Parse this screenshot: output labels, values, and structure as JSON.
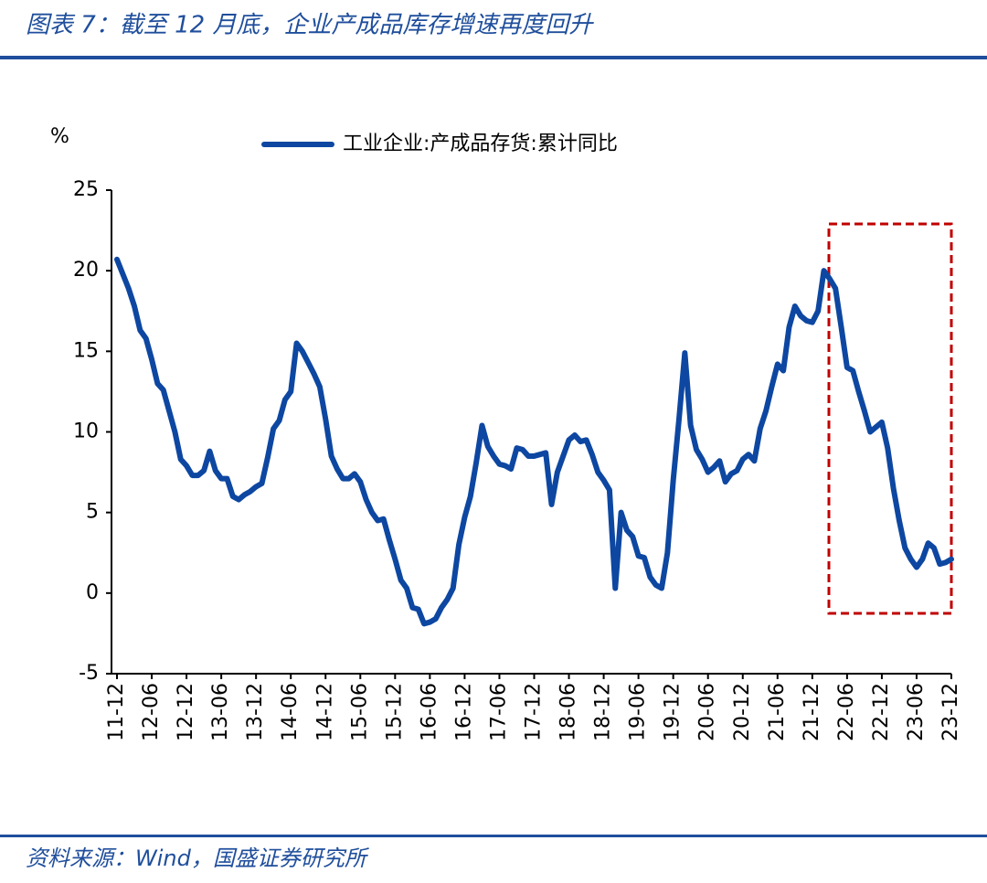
{
  "chart_data": {
    "type": "line",
    "title": "图表 7：截至 12 月底，企业产成品库存增速再度回升",
    "source": "资料来源：Wind，国盛证券研究所",
    "ylabel": "%",
    "categories": [
      "11-12",
      null,
      null,
      null,
      null,
      null,
      "12-06",
      null,
      null,
      null,
      null,
      null,
      "12-12",
      null,
      null,
      null,
      null,
      null,
      "13-06",
      null,
      null,
      null,
      null,
      null,
      "13-12",
      null,
      null,
      null,
      null,
      null,
      "14-06",
      null,
      null,
      null,
      null,
      null,
      "14-12",
      null,
      null,
      null,
      null,
      null,
      "15-06",
      null,
      null,
      null,
      null,
      null,
      "15-12",
      null,
      null,
      null,
      null,
      null,
      "16-06",
      null,
      null,
      null,
      null,
      null,
      "16-12",
      null,
      null,
      null,
      null,
      null,
      "17-06",
      null,
      null,
      null,
      null,
      null,
      "17-12",
      null,
      null,
      null,
      null,
      null,
      "18-06",
      null,
      null,
      null,
      null,
      null,
      "18-12",
      null,
      null,
      null,
      null,
      null,
      "19-06",
      null,
      null,
      null,
      null,
      null,
      "19-12",
      null,
      null,
      null,
      null,
      null,
      "20-06",
      null,
      null,
      null,
      null,
      null,
      "20-12",
      null,
      null,
      null,
      null,
      null,
      "21-06",
      null,
      null,
      null,
      null,
      null,
      "21-12",
      null,
      null,
      null,
      null,
      null,
      "22-06",
      null,
      null,
      null,
      null,
      null,
      "22-12",
      null,
      null,
      null,
      null,
      null,
      "23-06",
      null,
      null,
      null,
      null,
      null,
      "23-12"
    ],
    "series": [
      {
        "name": "工业企业:产成品存货:累计同比",
        "color": "#0d47a1",
        "values": [
          20.7,
          19.8,
          18.9,
          17.8,
          16.3,
          15.8,
          14.5,
          13.0,
          12.6,
          11.3,
          10.0,
          8.3,
          7.9,
          7.3,
          7.3,
          7.6,
          8.8,
          7.6,
          7.1,
          7.1,
          6.0,
          5.8,
          6.1,
          6.3,
          6.6,
          6.8,
          8.4,
          10.2,
          10.7,
          12.0,
          12.5,
          15.5,
          15.0,
          14.3,
          13.6,
          12.8,
          10.8,
          8.5,
          7.7,
          7.1,
          7.1,
          7.4,
          6.9,
          5.8,
          5.0,
          4.5,
          4.6,
          3.3,
          2.1,
          0.8,
          0.3,
          -0.9,
          -1.0,
          -1.9,
          -1.8,
          -1.6,
          -0.9,
          -0.4,
          0.3,
          3.0,
          4.7,
          6.0,
          8.1,
          10.4,
          9.1,
          8.5,
          8.0,
          7.9,
          7.7,
          9.0,
          8.9,
          8.5,
          8.5,
          8.6,
          8.7,
          5.5,
          7.5,
          8.5,
          9.5,
          9.8,
          9.4,
          9.5,
          8.6,
          7.5,
          7.0,
          6.4,
          0.3,
          5.0,
          3.9,
          3.5,
          2.3,
          2.2,
          1.0,
          0.5,
          0.3,
          2.5,
          7.0,
          10.8,
          14.9,
          10.4,
          8.9,
          8.3,
          7.5,
          7.8,
          8.2,
          6.9,
          7.4,
          7.6,
          8.3,
          8.6,
          8.2,
          10.2,
          11.3,
          12.8,
          14.2,
          13.8,
          16.5,
          17.8,
          17.2,
          16.9,
          16.8,
          17.5,
          20.0,
          19.5,
          18.9,
          16.5,
          14.0,
          13.8,
          12.5,
          11.3,
          10.0,
          10.3,
          10.6,
          9.0,
          6.5,
          4.5,
          2.8,
          2.1,
          1.6,
          2.1,
          3.1,
          2.8,
          1.8,
          1.9,
          2.1
        ]
      }
    ],
    "ylim": [
      -5,
      25
    ],
    "yticks": [
      -5,
      0,
      5,
      10,
      15,
      20,
      25
    ],
    "grid": false
  }
}
